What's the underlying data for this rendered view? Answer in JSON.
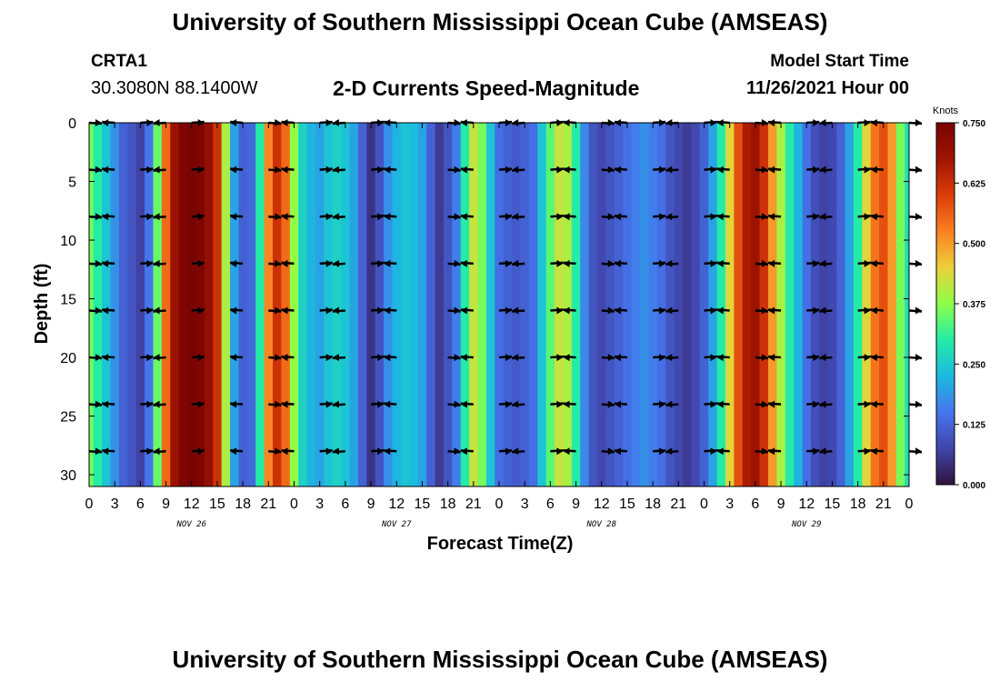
{
  "header": {
    "title": "University of Southern Mississippi Ocean Cube (AMSEAS)",
    "station_id": "CRTA1",
    "station_coords": "30.3080N  88.1400W",
    "subtitle": "2-D Currents Speed-Magnitude",
    "model_start_label": "Model Start Time",
    "model_start_value": "11/26/2021 Hour 00"
  },
  "footer": {
    "title_repeat": "University of Southern Mississippi Ocean Cube (AMSEAS)"
  },
  "chart_data": {
    "type": "heatmap",
    "title": "2-D Currents Speed-Magnitude",
    "xlabel": "Forecast Time(Z)",
    "ylabel": "Depth (ft)",
    "x_units": "forecast hours from model start",
    "xlim": [
      0,
      96
    ],
    "ylim": [
      0,
      31
    ],
    "y_inverted": true,
    "x_tick_hours": [
      0,
      3,
      6,
      9,
      12,
      15,
      18,
      21,
      24,
      27,
      30,
      33,
      36,
      39,
      42,
      45,
      48,
      51,
      54,
      57,
      60,
      63,
      66,
      69,
      72,
      75,
      78,
      81,
      84,
      87,
      90,
      93,
      96
    ],
    "x_tick_labels": [
      "0",
      "3",
      "6",
      "9",
      "12",
      "15",
      "18",
      "21",
      "0",
      "3",
      "6",
      "9",
      "12",
      "15",
      "18",
      "21",
      "0",
      "3",
      "6",
      "9",
      "12",
      "15",
      "18",
      "21",
      "0",
      "3",
      "6",
      "9",
      "12",
      "15",
      "18",
      "21",
      "0"
    ],
    "y_ticks": [
      0,
      5,
      10,
      15,
      20,
      25,
      30
    ],
    "day_labels": [
      {
        "hour": 12,
        "label": "NOV 26"
      },
      {
        "hour": 36,
        "label": "NOV 27"
      },
      {
        "hour": 60,
        "label": "NOV 28"
      },
      {
        "hour": 84,
        "label": "NOV 29"
      }
    ],
    "colorbar": {
      "label": "Knots",
      "min": 0.0,
      "max": 0.75,
      "ticks": [
        "0.000",
        "0.125",
        "0.250",
        "0.375",
        "0.500",
        "0.625",
        "0.750"
      ]
    },
    "speed_profile_by_hour": {
      "hours": [
        0,
        1,
        2,
        3,
        4,
        5,
        6,
        7,
        8,
        9,
        10,
        11,
        12,
        13,
        14,
        15,
        16,
        17,
        18,
        19,
        20,
        21,
        22,
        23,
        24,
        25,
        26,
        27,
        28,
        29,
        30,
        31,
        32,
        33,
        34,
        35,
        36,
        37,
        38,
        39,
        40,
        41,
        42,
        43,
        44,
        45,
        46,
        47,
        48,
        49,
        50,
        51,
        52,
        53,
        54,
        55,
        56,
        57,
        58,
        59,
        60,
        61,
        62,
        63,
        64,
        65,
        66,
        67,
        68,
        69,
        70,
        71,
        72,
        73,
        74,
        75,
        76,
        77,
        78,
        79,
        80,
        81,
        82,
        83,
        84,
        85,
        86,
        87,
        88,
        89,
        90,
        91,
        92,
        93,
        94,
        95,
        96
      ],
      "knots": [
        0.36,
        0.3,
        0.24,
        0.18,
        0.12,
        0.1,
        0.07,
        0.15,
        0.35,
        0.55,
        0.68,
        0.74,
        0.75,
        0.74,
        0.7,
        0.62,
        0.4,
        0.2,
        0.12,
        0.13,
        0.3,
        0.52,
        0.62,
        0.55,
        0.38,
        0.26,
        0.22,
        0.2,
        0.24,
        0.26,
        0.24,
        0.2,
        0.12,
        0.05,
        0.1,
        0.18,
        0.22,
        0.24,
        0.23,
        0.2,
        0.12,
        0.06,
        0.1,
        0.16,
        0.3,
        0.42,
        0.36,
        0.24,
        0.14,
        0.12,
        0.11,
        0.12,
        0.14,
        0.24,
        0.34,
        0.42,
        0.4,
        0.3,
        0.17,
        0.1,
        0.08,
        0.1,
        0.12,
        0.14,
        0.16,
        0.18,
        0.16,
        0.14,
        0.1,
        0.08,
        0.06,
        0.08,
        0.12,
        0.2,
        0.3,
        0.44,
        0.58,
        0.66,
        0.68,
        0.62,
        0.5,
        0.4,
        0.3,
        0.22,
        0.14,
        0.09,
        0.07,
        0.08,
        0.12,
        0.2,
        0.3,
        0.44,
        0.54,
        0.58,
        0.5,
        0.36,
        0.28
      ]
    },
    "vector_depths_ft": [
      0,
      4,
      8,
      12,
      16,
      20,
      24,
      28
    ],
    "vector_hours": [
      0,
      3,
      6,
      9,
      12,
      18,
      21,
      24,
      27,
      30,
      33,
      36,
      42,
      45,
      48,
      51,
      54,
      57,
      60,
      63,
      66,
      69,
      72,
      75,
      78,
      81,
      84,
      87,
      90,
      93,
      96
    ]
  }
}
